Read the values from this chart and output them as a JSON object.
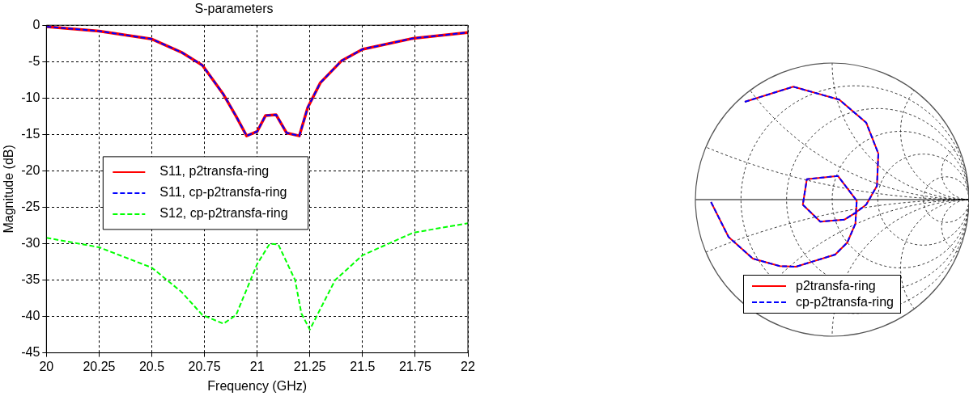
{
  "chart_data": [
    {
      "type": "line",
      "title": "S-parameters",
      "xlabel": "Frequency (GHz)",
      "ylabel": "Magnitude (dB)",
      "xlim": [
        20,
        22
      ],
      "xticks": [
        20,
        20.25,
        20.5,
        20.75,
        21,
        21.25,
        21.5,
        21.75,
        22
      ],
      "ylim": [
        -45,
        0
      ],
      "yticks": [
        0,
        -5,
        -10,
        -15,
        -20,
        -25,
        -30,
        -35,
        -40,
        -45
      ],
      "grid": true,
      "legend": "left",
      "marker": "none",
      "series": [
        {
          "name": "S11, p2transfa-ring",
          "color": "#ff0000",
          "line_style": "solid",
          "x": [
            20,
            20.25,
            20.5,
            20.64,
            20.74,
            20.84,
            20.9,
            20.95,
            21.0,
            21.04,
            21.09,
            21.14,
            21.2,
            21.24,
            21.3,
            21.4,
            21.5,
            21.74,
            22
          ],
          "values": [
            -0.2,
            -0.8,
            -1.9,
            -3.7,
            -5.5,
            -9.5,
            -12.5,
            -15.2,
            -14.6,
            -12.4,
            -12.3,
            -14.8,
            -15.2,
            -11.3,
            -7.9,
            -4.9,
            -3.3,
            -1.8,
            -1.0
          ]
        },
        {
          "name": "S11, cp-p2transfa-ring",
          "color": "#0000ff",
          "line_style": "dashed",
          "x": [
            20,
            20.25,
            20.5,
            20.64,
            20.74,
            20.84,
            20.9,
            20.95,
            21.0,
            21.04,
            21.09,
            21.14,
            21.2,
            21.24,
            21.3,
            21.4,
            21.5,
            21.74,
            22
          ],
          "values": [
            -0.2,
            -0.8,
            -1.9,
            -3.7,
            -5.5,
            -9.5,
            -12.5,
            -15.2,
            -14.6,
            -12.4,
            -12.3,
            -14.8,
            -15.2,
            -11.3,
            -7.9,
            -4.9,
            -3.3,
            -1.8,
            -1.0
          ]
        },
        {
          "name": "S12, cp-p2transfa-ring",
          "color": "#00ff00",
          "line_style": "dashed",
          "x": [
            20,
            20.25,
            20.5,
            20.64,
            20.74,
            20.84,
            20.9,
            21.0,
            21.06,
            21.1,
            21.18,
            21.21,
            21.25,
            21.37,
            21.5,
            21.74,
            22
          ],
          "values": [
            -29.2,
            -30.5,
            -33.3,
            -36.6,
            -39.8,
            -41.0,
            -39.8,
            -32.8,
            -30.0,
            -30.1,
            -35.0,
            -39.6,
            -41.8,
            -35.0,
            -31.6,
            -28.5,
            -27.2
          ]
        }
      ]
    },
    {
      "type": "other",
      "legend": "bottom",
      "series": [
        {
          "name": "p2transfa-ring",
          "color": "#ff0000",
          "line_style": "solid"
        },
        {
          "name": "cp-p2transfa-ring",
          "color": "#0000ff",
          "line_style": "dashed"
        }
      ]
    }
  ]
}
